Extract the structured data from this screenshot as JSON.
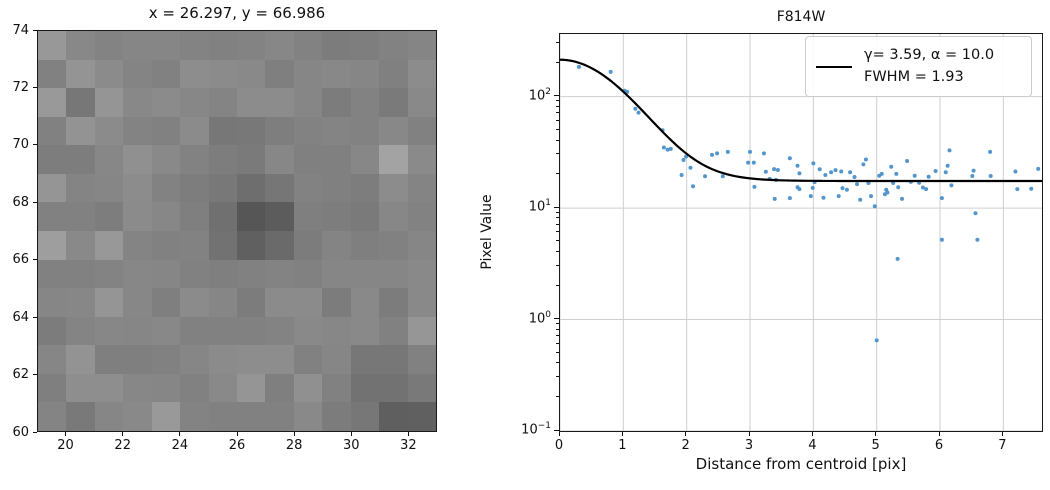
{
  "figure": {
    "background": "#ffffff"
  },
  "chart_data": [
    {
      "type": "heatmap",
      "title": "x = 26.297, y = 66.986",
      "x_range": [
        19,
        33
      ],
      "y_range": [
        60,
        74
      ],
      "x_ticks": [
        20,
        22,
        24,
        26,
        28,
        30,
        32
      ],
      "y_ticks": [
        74,
        72,
        70,
        68,
        66,
        64,
        62,
        60
      ],
      "colormap": "grayscale",
      "values": [
        [
          152,
          136,
          131,
          134,
          134,
          131,
          129,
          131,
          135,
          130,
          124,
          126,
          130,
          133
        ],
        [
          129,
          148,
          139,
          132,
          129,
          141,
          139,
          137,
          127,
          134,
          136,
          134,
          128,
          140
        ],
        [
          153,
          119,
          149,
          136,
          139,
          135,
          132,
          140,
          140,
          134,
          124,
          130,
          122,
          137
        ],
        [
          129,
          147,
          139,
          131,
          129,
          139,
          119,
          120,
          126,
          130,
          132,
          130,
          136,
          129
        ],
        [
          125,
          125,
          135,
          144,
          137,
          130,
          125,
          122,
          135,
          128,
          128,
          135,
          163,
          138
        ],
        [
          149,
          132,
          134,
          140,
          130,
          125,
          120,
          110,
          118,
          130,
          128,
          125,
          140,
          132
        ],
        [
          129,
          129,
          125,
          139,
          135,
          127,
          112,
          86,
          92,
          127,
          125,
          122,
          135,
          130
        ],
        [
          158,
          137,
          152,
          132,
          129,
          130,
          114,
          96,
          106,
          124,
          132,
          127,
          129,
          134
        ],
        [
          129,
          129,
          131,
          135,
          134,
          129,
          127,
          129,
          131,
          129,
          134,
          134,
          134,
          137
        ],
        [
          134,
          135,
          149,
          135,
          127,
          139,
          134,
          124,
          139,
          139,
          124,
          137,
          124,
          137
        ],
        [
          124,
          132,
          135,
          134,
          136,
          129,
          129,
          129,
          131,
          137,
          135,
          137,
          129,
          150
        ],
        [
          134,
          147,
          127,
          127,
          129,
          134,
          139,
          141,
          141,
          129,
          134,
          119,
          119,
          129
        ],
        [
          127,
          142,
          142,
          135,
          134,
          129,
          137,
          149,
          127,
          144,
          129,
          114,
          114,
          121
        ],
        [
          132,
          121,
          134,
          137,
          153,
          131,
          129,
          129,
          129,
          137,
          124,
          119,
          95,
          96
        ]
      ]
    },
    {
      "type": "scatter",
      "title": "F814W",
      "xlabel": "Distance from centroid [pix]",
      "ylabel": "Pixel Value",
      "yscale": "log",
      "xlim": [
        0,
        7.61
      ],
      "ylim": [
        0.1,
        365
      ],
      "grid": true,
      "x_ticks": [
        0,
        1,
        2,
        3,
        4,
        5,
        6,
        7
      ],
      "y_ticks": [
        {
          "value": 100,
          "base": "10",
          "exp": "2"
        },
        {
          "value": 10,
          "base": "10",
          "exp": "1"
        },
        {
          "value": 1,
          "base": "10",
          "exp": "0"
        },
        {
          "value": 0.1,
          "base": "10",
          "exp": "−1"
        }
      ],
      "point_color": "#4a90c9",
      "curve_color": "#000000",
      "grid_color": "#cfcfcf",
      "legend": {
        "position": "upper right",
        "lines": [
          "γ= 3.59, α = 10.0",
          "FWHM = 1.93"
        ]
      },
      "fit_curve": {
        "model": "moffat",
        "amplitude": 197,
        "gamma": 3.59,
        "alpha": 10.0,
        "background": 17.5,
        "fwhm": 1.93
      },
      "points": [
        [
          0.3,
          185
        ],
        [
          0.8,
          167
        ],
        [
          1.02,
          113
        ],
        [
          1.06,
          110
        ],
        [
          1.19,
          78
        ],
        [
          1.24,
          72
        ],
        [
          1.62,
          50
        ],
        [
          1.64,
          35
        ],
        [
          1.7,
          33.5
        ],
        [
          1.75,
          34
        ],
        [
          1.92,
          19.8
        ],
        [
          1.95,
          27
        ],
        [
          1.99,
          29
        ],
        [
          2.06,
          23
        ],
        [
          2.1,
          15.7
        ],
        [
          2.29,
          19.3
        ],
        [
          2.4,
          30
        ],
        [
          2.48,
          31
        ],
        [
          2.57,
          19.3
        ],
        [
          2.65,
          32
        ],
        [
          2.97,
          25.6
        ],
        [
          3.0,
          32
        ],
        [
          3.06,
          25.6
        ],
        [
          3.07,
          15.5
        ],
        [
          3.22,
          31
        ],
        [
          3.25,
          21.2
        ],
        [
          3.31,
          18.3
        ],
        [
          3.38,
          22.4
        ],
        [
          3.39,
          12.1
        ],
        [
          3.41,
          17.9
        ],
        [
          3.44,
          22.0
        ],
        [
          3.63,
          28
        ],
        [
          3.63,
          12.3
        ],
        [
          3.75,
          24
        ],
        [
          3.75,
          15.4
        ],
        [
          3.78,
          20.5
        ],
        [
          3.78,
          14.8
        ],
        [
          3.96,
          12.8
        ],
        [
          3.99,
          15.2
        ],
        [
          4.0,
          25.2
        ],
        [
          4.02,
          17.1
        ],
        [
          4.1,
          22.3
        ],
        [
          4.16,
          12.4
        ],
        [
          4.19,
          19.8
        ],
        [
          4.28,
          21.0
        ],
        [
          4.35,
          21.9
        ],
        [
          4.4,
          12.8
        ],
        [
          4.44,
          21.3
        ],
        [
          4.46,
          15.1
        ],
        [
          4.53,
          14.6
        ],
        [
          4.58,
          21.0
        ],
        [
          4.65,
          19.0
        ],
        [
          4.69,
          16.4
        ],
        [
          4.74,
          11.9
        ],
        [
          4.79,
          24.7
        ],
        [
          4.83,
          27.3
        ],
        [
          4.87,
          16.8
        ],
        [
          4.91,
          12.8
        ],
        [
          4.97,
          10.4
        ],
        [
          5.0,
          0.65
        ],
        [
          5.04,
          19.5
        ],
        [
          5.08,
          20.3
        ],
        [
          5.13,
          13.3
        ],
        [
          5.15,
          14.6
        ],
        [
          5.17,
          13.8
        ],
        [
          5.23,
          23.5
        ],
        [
          5.26,
          16.8
        ],
        [
          5.31,
          20.3
        ],
        [
          5.33,
          3.5
        ],
        [
          5.34,
          15.4
        ],
        [
          5.4,
          12.1
        ],
        [
          5.48,
          26.5
        ],
        [
          5.54,
          17.2
        ],
        [
          5.6,
          19.5
        ],
        [
          5.67,
          16.9
        ],
        [
          5.73,
          15.3
        ],
        [
          5.78,
          14.8
        ],
        [
          5.82,
          19.1
        ],
        [
          5.93,
          21.5
        ],
        [
          6.03,
          12.3
        ],
        [
          6.03,
          5.2
        ],
        [
          6.09,
          21.0
        ],
        [
          6.12,
          24.0
        ],
        [
          6.15,
          33.0
        ],
        [
          6.18,
          16.0
        ],
        [
          6.51,
          19.4
        ],
        [
          6.53,
          21.7
        ],
        [
          6.56,
          9.0
        ],
        [
          6.59,
          5.2
        ],
        [
          6.79,
          32.0
        ],
        [
          6.8,
          19.4
        ],
        [
          7.19,
          21.3
        ],
        [
          7.22,
          14.8
        ],
        [
          7.44,
          14.9
        ],
        [
          7.55,
          22.5
        ]
      ]
    }
  ]
}
